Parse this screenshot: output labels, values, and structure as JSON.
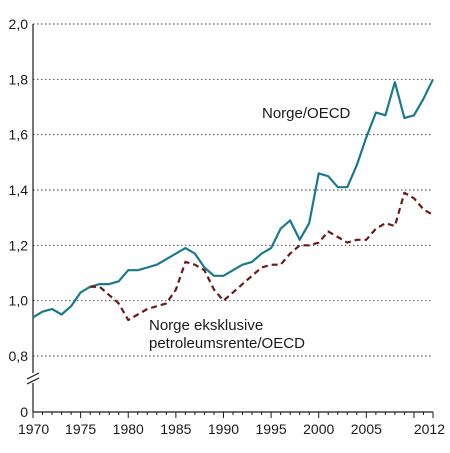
{
  "chart_data": {
    "type": "line",
    "title": "",
    "xlabel": "",
    "ylabel": "",
    "xlim": [
      1970,
      2012
    ],
    "ylim_upper": [
      0.8,
      2.0
    ],
    "y_axis_break": true,
    "grid": "horizontal-dotted",
    "x_ticks": [
      "1970",
      "1975",
      "1980",
      "1985",
      "1990",
      "1995",
      "2000",
      "2005",
      "2012"
    ],
    "y_ticks": [
      "2,0",
      "1,8",
      "1,6",
      "1,4",
      "1,2",
      "1,0",
      "0,8",
      "0"
    ],
    "series": [
      {
        "name": "Norge/OECD",
        "color": "#1a7a8c",
        "dash": "solid",
        "x": [
          1970,
          1971,
          1972,
          1973,
          1974,
          1975,
          1976,
          1977,
          1978,
          1979,
          1980,
          1981,
          1982,
          1983,
          1984,
          1985,
          1986,
          1987,
          1988,
          1989,
          1990,
          1991,
          1992,
          1993,
          1994,
          1995,
          1996,
          1997,
          1998,
          1999,
          2000,
          2001,
          2002,
          2003,
          2004,
          2005,
          2006,
          2007,
          2008,
          2009,
          2010,
          2011,
          2012
        ],
        "y": [
          0.94,
          0.96,
          0.97,
          0.95,
          0.98,
          1.03,
          1.05,
          1.06,
          1.06,
          1.07,
          1.11,
          1.11,
          1.12,
          1.13,
          1.15,
          1.17,
          1.19,
          1.17,
          1.12,
          1.09,
          1.09,
          1.11,
          1.13,
          1.14,
          1.17,
          1.19,
          1.26,
          1.29,
          1.22,
          1.28,
          1.46,
          1.45,
          1.41,
          1.41,
          1.49,
          1.59,
          1.68,
          1.67,
          1.79,
          1.66,
          1.67,
          1.73,
          1.8
        ]
      },
      {
        "name": "Norge eksklusive petroleumsrente/OECD",
        "color": "#6b1a1a",
        "dash": "dashed",
        "x": [
          1976,
          1977,
          1978,
          1979,
          1980,
          1981,
          1982,
          1983,
          1984,
          1985,
          1986,
          1987,
          1988,
          1989,
          1990,
          1991,
          1992,
          1993,
          1994,
          1995,
          1996,
          1997,
          1998,
          1999,
          2000,
          2001,
          2002,
          2003,
          2004,
          2005,
          2006,
          2007,
          2008,
          2009,
          2010,
          2011,
          2012
        ],
        "y": [
          1.05,
          1.05,
          1.02,
          0.99,
          0.93,
          0.95,
          0.97,
          0.98,
          0.99,
          1.04,
          1.14,
          1.13,
          1.11,
          1.04,
          1.0,
          1.03,
          1.06,
          1.09,
          1.12,
          1.13,
          1.13,
          1.17,
          1.2,
          1.2,
          1.21,
          1.25,
          1.23,
          1.21,
          1.22,
          1.22,
          1.26,
          1.28,
          1.27,
          1.39,
          1.37,
          1.33,
          1.31
        ]
      }
    ],
    "labels": {
      "solid_line": "Norge/OECD",
      "dashed_line_1": "Norge eksklusive",
      "dashed_line_2": "petroleumsrente/OECD"
    }
  }
}
